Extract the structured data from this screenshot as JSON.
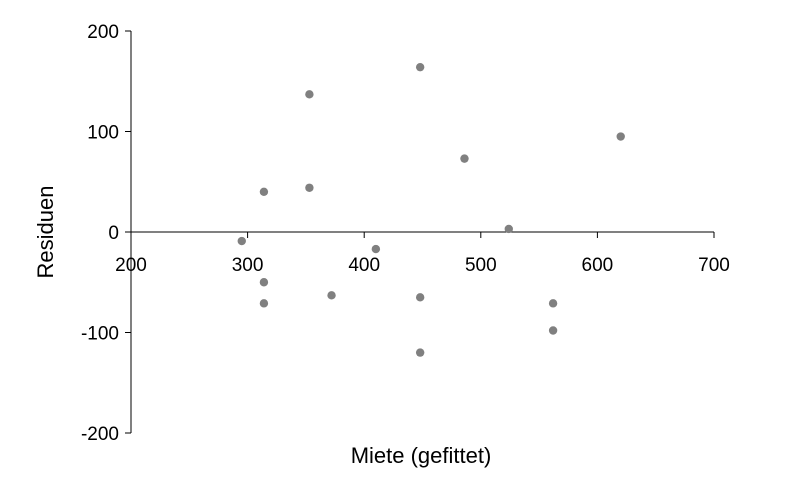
{
  "chart_data": {
    "type": "scatter",
    "title": "",
    "xlabel": "Miete (gefittet)",
    "ylabel": "Residuen",
    "xlim": [
      200,
      700
    ],
    "ylim": [
      -200,
      200
    ],
    "x_ticks": [
      200,
      300,
      400,
      500,
      600,
      700
    ],
    "y_ticks": [
      -200,
      -100,
      0,
      100,
      200
    ],
    "x_tick_labels": [
      "200",
      "300",
      "400",
      "500",
      "600",
      "700"
    ],
    "y_tick_labels": [
      "-200",
      "-100",
      "0",
      "100",
      "200"
    ],
    "grid": false,
    "legend": "none",
    "marker_color": "#808080",
    "series": [
      {
        "points": [
          {
            "x": 295,
            "y": -9
          },
          {
            "x": 314,
            "y": 40
          },
          {
            "x": 314,
            "y": -50
          },
          {
            "x": 314,
            "y": -71
          },
          {
            "x": 353,
            "y": 137
          },
          {
            "x": 353,
            "y": 44
          },
          {
            "x": 372,
            "y": -63
          },
          {
            "x": 410,
            "y": -17
          },
          {
            "x": 448,
            "y": 164
          },
          {
            "x": 448,
            "y": -65
          },
          {
            "x": 448,
            "y": -120
          },
          {
            "x": 486,
            "y": 73
          },
          {
            "x": 524,
            "y": 3
          },
          {
            "x": 562,
            "y": -71
          },
          {
            "x": 562,
            "y": -98
          },
          {
            "x": 620,
            "y": 95
          }
        ]
      }
    ]
  }
}
